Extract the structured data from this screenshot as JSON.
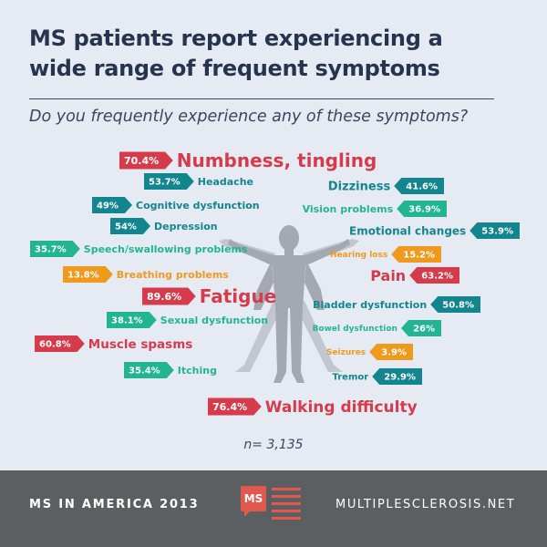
{
  "title_line1": "MS patients report experiencing a",
  "title_line2": "wide range of frequent symptoms",
  "question": "Do you frequently experience any of these symptoms?",
  "sample_size": "n= 3,135",
  "footer": {
    "left": "MS IN AMERICA 2013",
    "right": "MULTIPLESCLEROSIS.NET",
    "logo_text": "MS"
  },
  "colors": {
    "red": "#d63b4c",
    "teal": "#13858e",
    "green": "#22b592",
    "orange": "#ef9a1d"
  },
  "chart_data": {
    "type": "bar",
    "encoding": "symptom labels with percentage tags, arranged around a human figure",
    "categories": [
      "Numbness, tingling",
      "Headache",
      "Cognitive dysfunction",
      "Depression",
      "Speech/swallowing problems",
      "Breathing problems",
      "Fatigue",
      "Sexual dysfunction",
      "Muscle spasms",
      "Itching",
      "Walking difficulty",
      "Dizziness",
      "Vision problems",
      "Emotional changes",
      "Hearing loss",
      "Pain",
      "Bladder dysfunction",
      "Bowel dysfunction",
      "Seizures",
      "Tremor"
    ],
    "values": [
      70.4,
      53.7,
      49,
      54,
      35.7,
      13.8,
      89.6,
      38.1,
      60.8,
      35.4,
      76.4,
      41.6,
      36.9,
      53.9,
      15.2,
      63.2,
      50.8,
      26,
      3.9,
      29.9
    ],
    "unit": "%",
    "items": [
      {
        "label": "Numbness, tingling",
        "value": "70.4%",
        "color": "red"
      },
      {
        "label": "Headache",
        "value": "53.7%",
        "color": "teal"
      },
      {
        "label": "Cognitive dysfunction",
        "value": "49%",
        "color": "teal"
      },
      {
        "label": "Depression",
        "value": "54%",
        "color": "teal"
      },
      {
        "label": "Speech/swallowing problems",
        "value": "35.7%",
        "color": "green"
      },
      {
        "label": "Breathing problems",
        "value": "13.8%",
        "color": "orange"
      },
      {
        "label": "Fatigue",
        "value": "89.6%",
        "color": "red"
      },
      {
        "label": "Sexual dysfunction",
        "value": "38.1%",
        "color": "green"
      },
      {
        "label": "Muscle spasms",
        "value": "60.8%",
        "color": "red"
      },
      {
        "label": "Itching",
        "value": "35.4%",
        "color": "green"
      },
      {
        "label": "Walking difficulty",
        "value": "76.4%",
        "color": "red"
      },
      {
        "label": "Dizziness",
        "value": "41.6%",
        "color": "teal"
      },
      {
        "label": "Vision problems",
        "value": "36.9%",
        "color": "green"
      },
      {
        "label": "Emotional changes",
        "value": "53.9%",
        "color": "teal"
      },
      {
        "label": "Hearing loss",
        "value": "15.2%",
        "color": "orange"
      },
      {
        "label": "Pain",
        "value": "63.2%",
        "color": "red"
      },
      {
        "label": "Bladder dysfunction",
        "value": "50.8%",
        "color": "teal"
      },
      {
        "label": "Bowel dysfunction",
        "value": "26%",
        "color": "green"
      },
      {
        "label": "Seizures",
        "value": "3.9%",
        "color": "orange"
      },
      {
        "label": "Tremor",
        "value": "29.9%",
        "color": "teal"
      }
    ]
  }
}
